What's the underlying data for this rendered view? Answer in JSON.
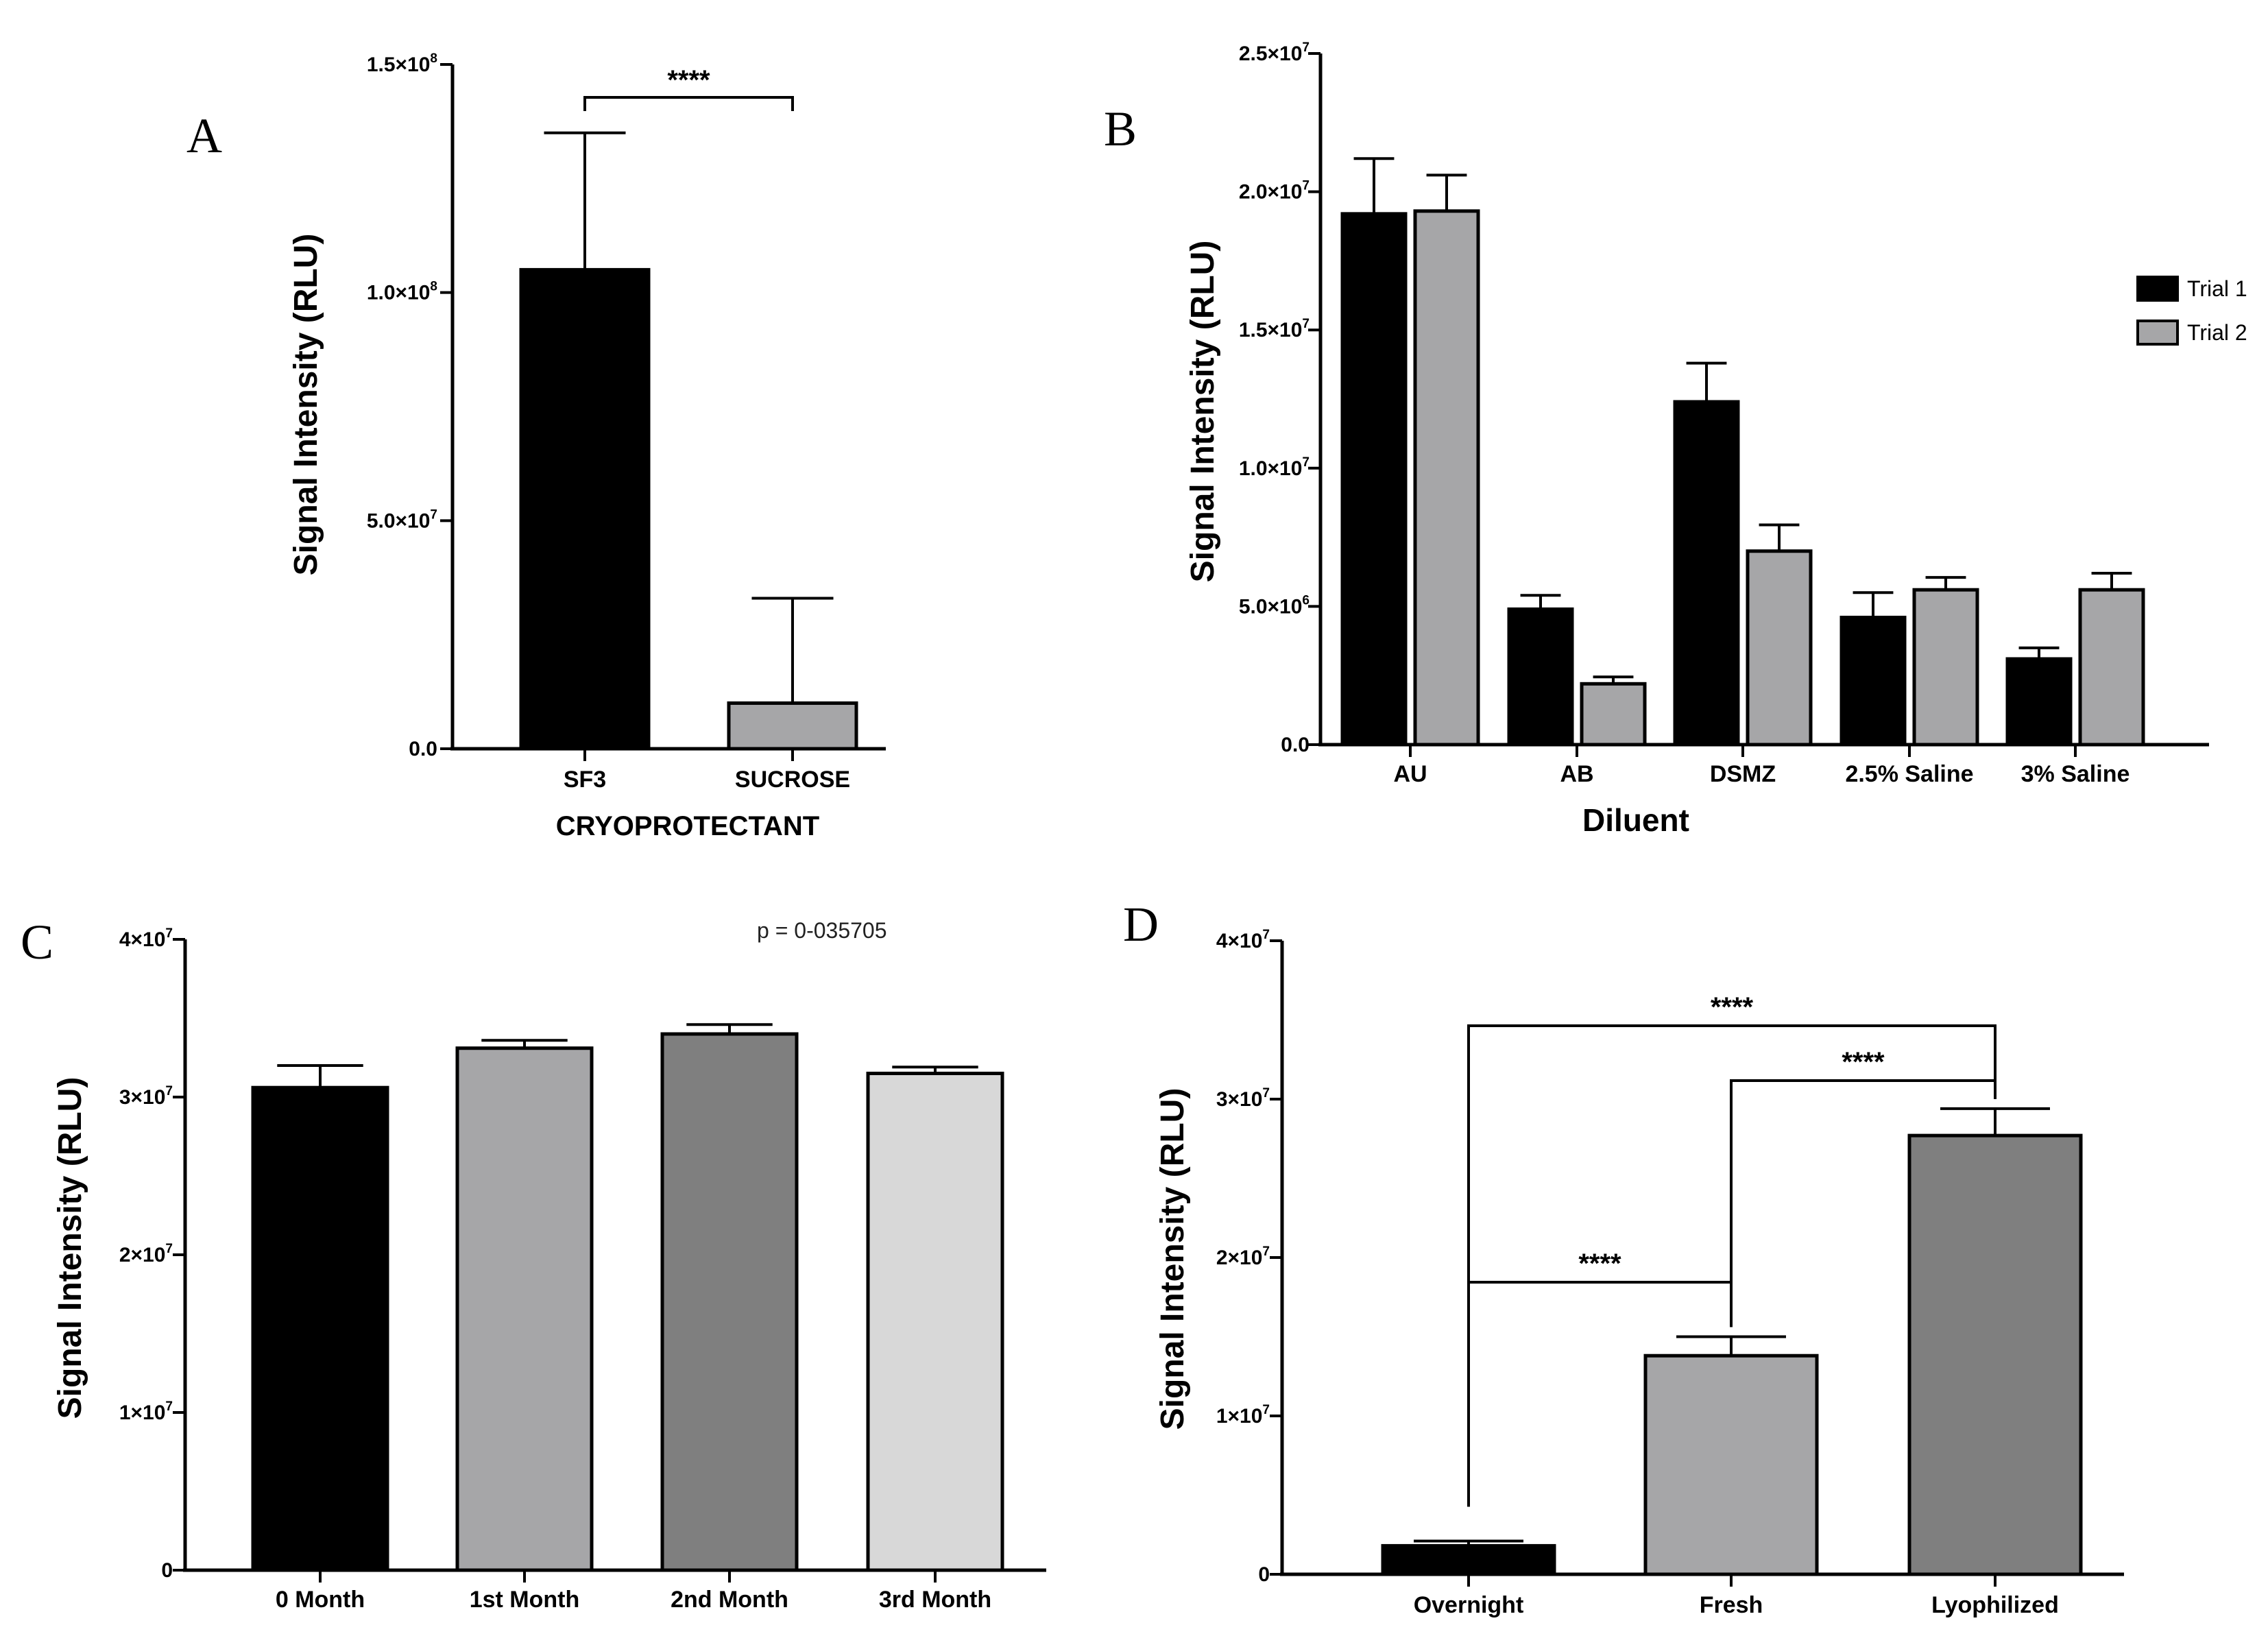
{
  "chart_data": [
    {
      "panel": "A",
      "type": "bar",
      "ylabel": "Signal Intensity (RLU)",
      "xlabel": "CRYOPROTECTANT",
      "ylim": [
        0,
        150000000
      ],
      "yticks": [
        {
          "value": 0,
          "label": "0.0"
        },
        {
          "value": 50000000,
          "label": "5.0×10",
          "exp": "7"
        },
        {
          "value": 100000000,
          "label": "1.0×10",
          "exp": "8"
        },
        {
          "value": 150000000,
          "label": "1.5×10",
          "exp": "8"
        }
      ],
      "categories": [
        "SF3",
        "SUCROSE"
      ],
      "values": [
        105000000,
        10000000
      ],
      "errors": [
        30000000,
        23000000
      ],
      "colors": [
        "#000000",
        "#a6a6a8"
      ],
      "significance": [
        {
          "from": 0,
          "to": 1,
          "label": "****"
        }
      ]
    },
    {
      "panel": "B",
      "type": "bar",
      "ylabel": "Signal Intensity (RLU)",
      "xlabel": "Diluent",
      "ylim": [
        0,
        25000000
      ],
      "yticks": [
        {
          "value": 0,
          "label": "0.0"
        },
        {
          "value": 5000000,
          "label": "5.0×10",
          "exp": "6"
        },
        {
          "value": 10000000,
          "label": "1.0×10",
          "exp": "7"
        },
        {
          "value": 15000000,
          "label": "1.5×10",
          "exp": "7"
        },
        {
          "value": 20000000,
          "label": "2.0×10",
          "exp": "7"
        },
        {
          "value": 25000000,
          "label": "2.5×10",
          "exp": "7"
        }
      ],
      "categories": [
        "AU",
        "AB",
        "DSMZ",
        "2.5% Saline",
        "3% Saline"
      ],
      "series": [
        {
          "name": "Trial 1",
          "color": "#000000",
          "values": [
            19200000,
            4900000,
            12400000,
            4600000,
            3100000
          ],
          "errors": [
            2000000,
            500000,
            1400000,
            900000,
            400000
          ]
        },
        {
          "name": "Trial 2",
          "color": "#a6a6a8",
          "values": [
            19300000,
            2200000,
            7000000,
            5600000,
            5600000
          ],
          "errors": [
            1300000,
            250000,
            950000,
            450000,
            600000
          ]
        }
      ],
      "legend_position": "right"
    },
    {
      "panel": "C",
      "type": "bar",
      "ylabel": "Signal Intensity (RLU)",
      "xlabel": "",
      "ylim": [
        0,
        40000000
      ],
      "yticks": [
        {
          "value": 0,
          "label": "0"
        },
        {
          "value": 10000000,
          "label": "1×10",
          "exp": "7"
        },
        {
          "value": 20000000,
          "label": "2×10",
          "exp": "7"
        },
        {
          "value": 30000000,
          "label": "3×10",
          "exp": "7"
        },
        {
          "value": 40000000,
          "label": "4×10",
          "exp": "7"
        }
      ],
      "categories": [
        "0 Month",
        "1st Month",
        "2nd Month",
        "3rd Month"
      ],
      "values": [
        30600000,
        33100000,
        34000000,
        31500000
      ],
      "errors": [
        1400000,
        500000,
        600000,
        400000
      ],
      "colors": [
        "#000000",
        "#a6a6a8",
        "#7f7f7f",
        "#d8d8d8"
      ],
      "annotation": "p = 0-035705"
    },
    {
      "panel": "D",
      "type": "bar",
      "ylabel": "Signal Intensity (RLU)",
      "xlabel": "",
      "ylim": [
        0,
        40000000
      ],
      "yticks": [
        {
          "value": 0,
          "label": "0"
        },
        {
          "value": 10000000,
          "label": "1×10",
          "exp": "7"
        },
        {
          "value": 20000000,
          "label": "2×10",
          "exp": "7"
        },
        {
          "value": 30000000,
          "label": "3×10",
          "exp": "7"
        },
        {
          "value": 40000000,
          "label": "4×10",
          "exp": "7"
        }
      ],
      "categories": [
        "Overnight",
        "Fresh",
        "Lyophilized"
      ],
      "values": [
        1800000,
        13800000,
        27700000
      ],
      "errors": [
        300000,
        1200000,
        1700000
      ],
      "colors": [
        "#000000",
        "#a6a6a8",
        "#7f7f7f"
      ],
      "significance": [
        {
          "from": 0,
          "to": 2,
          "label": "****"
        },
        {
          "from": 1,
          "to": 2,
          "label": "****"
        },
        {
          "from": 0,
          "to": 1,
          "label": "****"
        }
      ]
    }
  ]
}
